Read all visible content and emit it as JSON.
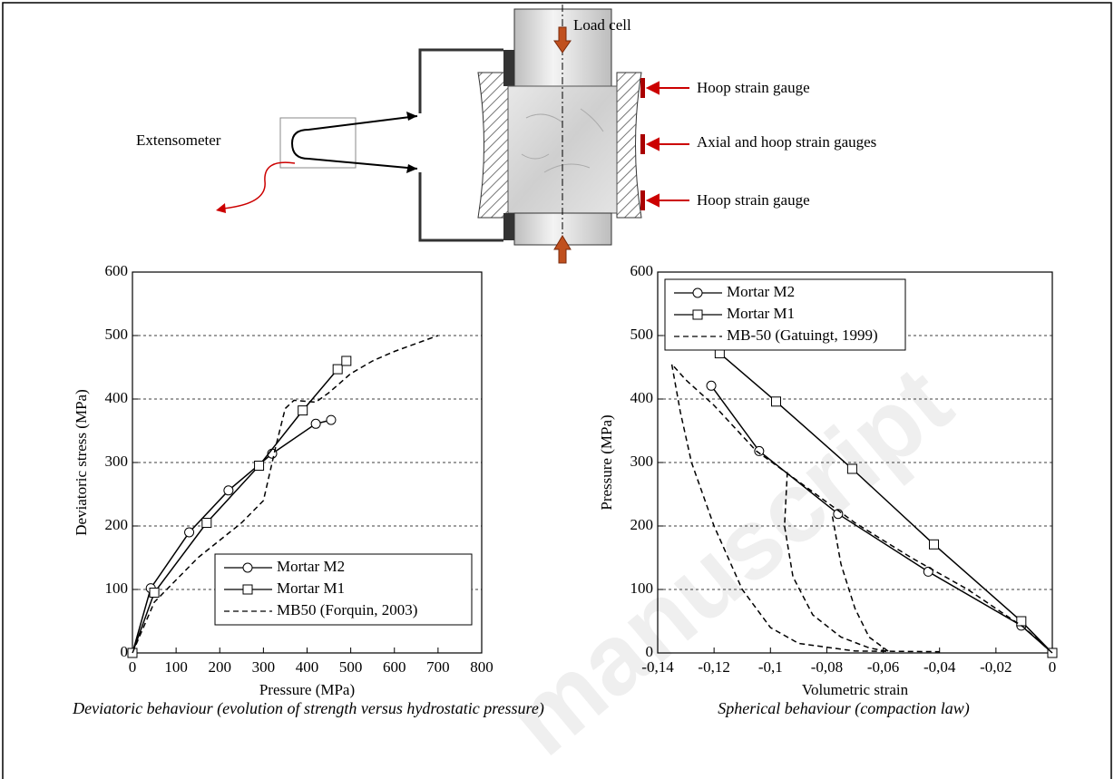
{
  "figure": {
    "labels": {
      "load_cell": "Load cell",
      "hoop_top": "Hoop strain gauge",
      "axial_hoop": "Axial and hoop strain gauges",
      "hoop_bottom": "Hoop strain gauge",
      "extensometer": "Extensometer"
    },
    "watermark": "manuscript"
  },
  "chart_data": [
    {
      "type": "line",
      "x_label": "Pressure (MPa)",
      "y_label": "Deviatoric stress (MPa)",
      "caption": "Deviatoric behaviour (evolution of strength versus hydrostatic pressure)",
      "xlim": [
        0,
        800
      ],
      "ylim": [
        0,
        600
      ],
      "xticks": [
        0,
        100,
        200,
        300,
        400,
        500,
        600,
        700,
        800
      ],
      "yticks": [
        0,
        100,
        200,
        300,
        400,
        500,
        600
      ],
      "grid": true,
      "legend": "lower right",
      "series": [
        {
          "name": "Mortar M2",
          "color": "#000000",
          "marker": "circle",
          "dash": "solid",
          "x": [
            0,
            42,
            130,
            220,
            320,
            420,
            455
          ],
          "values": [
            0,
            102,
            190,
            256,
            314,
            361,
            367
          ]
        },
        {
          "name": "Mortar M1",
          "color": "#000000",
          "marker": "square",
          "dash": "solid",
          "x": [
            0,
            50,
            170,
            290,
            390,
            470,
            490
          ],
          "values": [
            0,
            95,
            205,
            295,
            382,
            447,
            460
          ]
        },
        {
          "name": "MB50 (Forquin, 2003)",
          "color": "#000000",
          "marker": "none",
          "dash": "dashed",
          "x": [
            0,
            50,
            150,
            250,
            300,
            330,
            350,
            370,
            420,
            450,
            500,
            550,
            600,
            700
          ],
          "values": [
            0,
            80,
            150,
            205,
            240,
            330,
            385,
            398,
            395,
            410,
            440,
            460,
            475,
            500
          ]
        }
      ]
    },
    {
      "type": "line",
      "x_label": "Volumetric strain",
      "y_label": "Pressure (MPa)",
      "caption": "Spherical behaviour (compaction law)",
      "xlim": [
        -0.14,
        0
      ],
      "ylim": [
        0,
        600
      ],
      "xticks": [
        {
          "value": -0.14,
          "label": "-0,14"
        },
        {
          "value": -0.12,
          "label": "-0,12"
        },
        {
          "value": -0.1,
          "label": "-0,1"
        },
        {
          "value": -0.08,
          "label": "-0,08"
        },
        {
          "value": -0.06,
          "label": "-0,06"
        },
        {
          "value": -0.04,
          "label": "-0,04"
        },
        {
          "value": -0.02,
          "label": "-0,02"
        },
        0
      ],
      "yticks": [
        0,
        100,
        200,
        300,
        400,
        500,
        600
      ],
      "grid": true,
      "legend": "upper left",
      "series": [
        {
          "name": "Mortar M2",
          "color": "#000000",
          "marker": "circle",
          "dash": "solid",
          "x": [
            -0.121,
            -0.104,
            -0.076,
            -0.044,
            -0.011,
            0
          ],
          "values": [
            421,
            318,
            219,
            128,
            43,
            0
          ]
        },
        {
          "name": "Mortar M1",
          "color": "#000000",
          "marker": "square",
          "dash": "solid",
          "x": [
            -0.118,
            -0.098,
            -0.071,
            -0.042,
            -0.011,
            0
          ],
          "values": [
            472,
            396,
            290,
            171,
            50,
            0
          ]
        },
        {
          "name": "MB-50 (Gatuingt, 1999)",
          "color": "#000000",
          "marker": "none",
          "dash": "dashed",
          "x": [
            0,
            -0.01,
            -0.03,
            -0.05,
            -0.07,
            -0.09,
            -0.105,
            -0.12,
            -0.13,
            -0.135,
            -0.132,
            -0.128,
            -0.12,
            -0.11,
            -0.1,
            -0.09,
            -0.07,
            -0.04,
            null,
            -0.094,
            -0.095,
            -0.092,
            -0.085,
            -0.075,
            -0.065,
            -0.058,
            null,
            -0.078,
            -0.075,
            -0.07,
            -0.065,
            -0.058
          ],
          "values": [
            0,
            40,
            100,
            150,
            205,
            270,
            318,
            390,
            430,
            455,
            380,
            300,
            200,
            100,
            40,
            15,
            3,
            2,
            null,
            285,
            200,
            120,
            60,
            25,
            8,
            2,
            null,
            215,
            140,
            70,
            25,
            2
          ]
        }
      ]
    }
  ]
}
